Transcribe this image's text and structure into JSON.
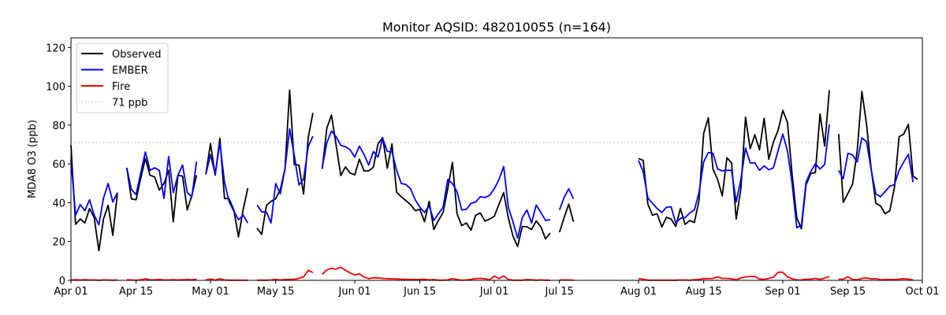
{
  "chart_data": {
    "type": "line",
    "title": "Monitor AQSID: 482010055 (n=164)",
    "xlabel": "",
    "ylabel": "MDA8 O3 (ppb)",
    "x_unit": "days since Apr 01",
    "xlim": [
      0,
      183
    ],
    "ylim": [
      0,
      125
    ],
    "grid": false,
    "legend_position": "top-left",
    "x_ticks": [
      {
        "label": "Apr 01",
        "value": 0
      },
      {
        "label": "Apr 15",
        "value": 14
      },
      {
        "label": "May 01",
        "value": 30
      },
      {
        "label": "May 15",
        "value": 44
      },
      {
        "label": "Jun 01",
        "value": 61
      },
      {
        "label": "Jun 15",
        "value": 75
      },
      {
        "label": "Jul 01",
        "value": 91
      },
      {
        "label": "Jul 15",
        "value": 105
      },
      {
        "label": "Aug 01",
        "value": 122
      },
      {
        "label": "Aug 15",
        "value": 136
      },
      {
        "label": "Sep 01",
        "value": 153
      },
      {
        "label": "Sep 15",
        "value": 167
      },
      {
        "label": "Oct 01",
        "value": 183
      }
    ],
    "y_ticks": [
      {
        "label": "0",
        "value": 0
      },
      {
        "label": "20",
        "value": 20
      },
      {
        "label": "40",
        "value": 40
      },
      {
        "label": "60",
        "value": 60
      },
      {
        "label": "80",
        "value": 80
      },
      {
        "label": "100",
        "value": 100
      },
      {
        "label": "120",
        "value": 120
      }
    ],
    "threshold": {
      "name": "71 ppb",
      "value": 71,
      "color": "#cccccc"
    },
    "series": [
      {
        "name": "Observed",
        "color": "#000000",
        "values": [
          69.6,
          28.9,
          31.6,
          29.6,
          37,
          32.3,
          15.3,
          31.6,
          38.7,
          23.2,
          45.2,
          null,
          58,
          42,
          41.5,
          52.6,
          62.8,
          54.2,
          53.3,
          46.5,
          49.9,
          56.7,
          30.2,
          54.2,
          53.7,
          36.3,
          43.8,
          54.2,
          null,
          54.6,
          70.5,
          54.2,
          73.2,
          42.2,
          42,
          36.3,
          22.4,
          36.3,
          47.5,
          null,
          26.9,
          23.7,
          38.6,
          40.7,
          42,
          46.8,
          57.4,
          98,
          59.7,
          59.4,
          44.5,
          73.6,
          86.3,
          null,
          57.4,
          78.4,
          85.2,
          69.6,
          54,
          58.5,
          55.3,
          54.4,
          62.4,
          56.4,
          56.4,
          58.3,
          70.3,
          73.6,
          57.8,
          70.3,
          45.4,
          43.1,
          41.1,
          39,
          35.9,
          36.6,
          30.2,
          40.7,
          26.2,
          30.9,
          35,
          47.2,
          60.8,
          34.3,
          28.2,
          29.6,
          25.8,
          33.6,
          34.7,
          30.5,
          31.6,
          33,
          39.3,
          45.2,
          32.3,
          22.8,
          17.4,
          27.8,
          27.6,
          26.2,
          30.6,
          27.6,
          21.4,
          24.4,
          null,
          24.8,
          32.3,
          39.3,
          30.2,
          null,
          null,
          null,
          null,
          null,
          null,
          null,
          null,
          null,
          null,
          null,
          null,
          null,
          62.8,
          61.8,
          39.3,
          33.6,
          34.3,
          27.5,
          32.5,
          31.6,
          27.8,
          37,
          28.8,
          30.9,
          29.8,
          41.1,
          75.7,
          83.8,
          57.4,
          52,
          43.5,
          63.2,
          60.5,
          31.6,
          47.2,
          84.1,
          67.8,
          75,
          67.3,
          83.5,
          62.4,
          71.3,
          77.3,
          87.6,
          81.4,
          54.6,
          32.3,
          26.6,
          49.2,
          55,
          55.6,
          85.8,
          69.2,
          98,
          null,
          75.4,
          40.2,
          44.8,
          49.6,
          66.9,
          97.4,
          80.4,
          57.4,
          39.7,
          38.4,
          34.3,
          35.9,
          47.9,
          74,
          75.4,
          80.4,
          53.7,
          52
        ]
      },
      {
        "name": "EMBER",
        "color": "#0000ff",
        "values": [
          62,
          33.6,
          39,
          35.9,
          41.5,
          33.6,
          28.6,
          42.4,
          49.9,
          40.4,
          45.2,
          null,
          58,
          46.8,
          44.2,
          55.3,
          66.2,
          56.7,
          58,
          56.7,
          42.2,
          63.9,
          45.2,
          54.2,
          59.4,
          45.2,
          43.1,
          61.2,
          null,
          54.6,
          64.8,
          54.6,
          70.9,
          50.6,
          40.4,
          35.7,
          31.2,
          33.6,
          29.6,
          null,
          38.8,
          35.3,
          35.3,
          29.6,
          49.9,
          44.6,
          57.4,
          78,
          64.4,
          49.2,
          52.2,
          68.9,
          74.3,
          null,
          58,
          70.9,
          77,
          74,
          69.6,
          68.9,
          67.3,
          63.5,
          69.2,
          64.8,
          59.4,
          66.4,
          63.5,
          73.2,
          66.4,
          66.3,
          56.7,
          49.9,
          49.4,
          47.2,
          41.5,
          37.7,
          35,
          38.4,
          30.9,
          34.3,
          37.7,
          52,
          49.9,
          45.6,
          36.3,
          36.6,
          39.7,
          40.4,
          43.1,
          42.7,
          43.8,
          47.2,
          52,
          58.7,
          37.7,
          30.2,
          21.7,
          32.3,
          36.3,
          29.6,
          38.8,
          35,
          30.9,
          31.2,
          null,
          36.3,
          42.7,
          47.2,
          42,
          null,
          null,
          null,
          null,
          null,
          null,
          null,
          null,
          null,
          null,
          null,
          null,
          null,
          61.8,
          56,
          42.4,
          39.7,
          37,
          35,
          37.7,
          37.9,
          29.6,
          32,
          32.3,
          34.7,
          36.3,
          45.2,
          61,
          65.9,
          65.5,
          57.4,
          56.4,
          56.7,
          56.7,
          40.4,
          52,
          68.2,
          60.5,
          60.5,
          56.7,
          59,
          57,
          58,
          66.8,
          75.4,
          66.8,
          49.9,
          27.1,
          28.5,
          50.6,
          56,
          60.1,
          57.4,
          59.8,
          80.4,
          null,
          56.7,
          52.4,
          65.5,
          64.6,
          61,
          73.4,
          71.6,
          57,
          44.5,
          43.1,
          45.8,
          48.5,
          49.4,
          56.7,
          61,
          65,
          50.6,
          null
        ]
      },
      {
        "name": "Fire",
        "color": "#ff0000",
        "values": [
          0.2,
          0.3,
          0.2,
          0.3,
          0.2,
          0.2,
          0.1,
          0.2,
          0.2,
          0.1,
          0.2,
          null,
          0.3,
          0.2,
          0.1,
          0.3,
          0.8,
          0.2,
          0.3,
          0.4,
          0.2,
          0.2,
          0.3,
          0.2,
          0.3,
          0.4,
          0.3,
          0.6,
          null,
          0.2,
          0.7,
          0.1,
          0.8,
          0.2,
          0.1,
          0.1,
          0.1,
          0.1,
          0.1,
          null,
          0.1,
          0.1,
          0.1,
          0.2,
          0.5,
          0.2,
          0.4,
          0.5,
          0.5,
          1.1,
          1.8,
          5.2,
          4.0,
          null,
          3.1,
          5.4,
          6.2,
          5.8,
          6.8,
          5.2,
          3.8,
          2.7,
          3.4,
          1.7,
          0.9,
          1.3,
          1.2,
          1.0,
          0.9,
          0.8,
          0.7,
          0.6,
          0.5,
          0.5,
          0.4,
          0.5,
          0.6,
          0.2,
          0.4,
          0.1,
          0.1,
          0.2,
          0.9,
          0.4,
          0.1,
          0.2,
          0.5,
          0.9,
          1.0,
          0.8,
          0.3,
          2.2,
          0.9,
          2.3,
          0.5,
          0.1,
          0.1,
          0.1,
          0.4,
          0.3,
          0.1,
          0.2,
          0.1,
          0.1,
          null,
          0.2,
          0.2,
          0.2,
          0.1,
          null,
          null,
          null,
          null,
          null,
          null,
          null,
          null,
          null,
          null,
          null,
          null,
          null,
          0.8,
          0.6,
          0.1,
          0.1,
          0.1,
          0.1,
          0.1,
          0.1,
          0.1,
          0.2,
          0.2,
          0.1,
          0.3,
          0.5,
          0.9,
          0.9,
          1.0,
          1.8,
          1.0,
          1.0,
          0.8,
          0.3,
          1.2,
          1.8,
          2.0,
          2.0,
          0.7,
          0.5,
          1.0,
          1.6,
          4.2,
          4.2,
          1.8,
          0.8,
          0.2,
          0.2,
          0.6,
          0.6,
          1.0,
          0.5,
          1.2,
          2.0,
          null,
          0.6,
          0.6,
          1.8,
          0.5,
          0.3,
          1.0,
          1.2,
          0.8,
          0.8,
          0.3,
          0.4,
          0.4,
          0.4,
          0.6,
          0.9,
          0.6,
          0.2,
          null
        ]
      }
    ]
  }
}
